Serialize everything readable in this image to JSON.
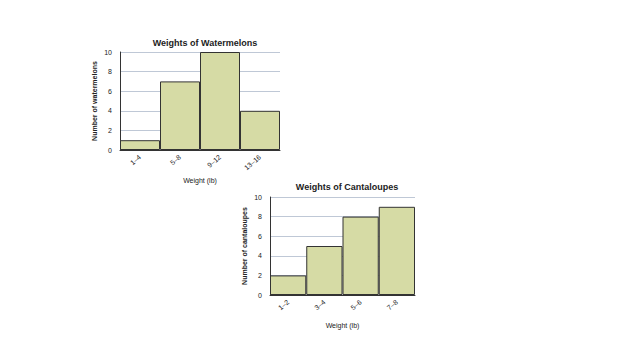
{
  "chart_data": [
    {
      "type": "bar",
      "title": "Weights of Watermelons",
      "x_label": "Weight (lb)",
      "y_label": "Number of watermelons",
      "categories": [
        "1–4",
        "5–8",
        "9–12",
        "13–16"
      ],
      "values": [
        1,
        7,
        10,
        4
      ],
      "color": "#d6dba5",
      "ylim": [
        0,
        10
      ],
      "yticks": [
        0,
        2,
        4,
        6,
        8,
        10
      ],
      "grid": true
    },
    {
      "type": "bar",
      "title": "Weights of Cantaloupes",
      "x_label": "Weight (lb)",
      "y_label": "Number of cantaloupes",
      "categories": [
        "1–2",
        "3–4",
        "5–6",
        "7–8"
      ],
      "values": [
        2,
        5,
        8,
        9
      ],
      "color": "#d6dba5",
      "ylim": [
        0,
        10
      ],
      "yticks": [
        0,
        2,
        4,
        6,
        8,
        10
      ],
      "grid": true
    }
  ]
}
